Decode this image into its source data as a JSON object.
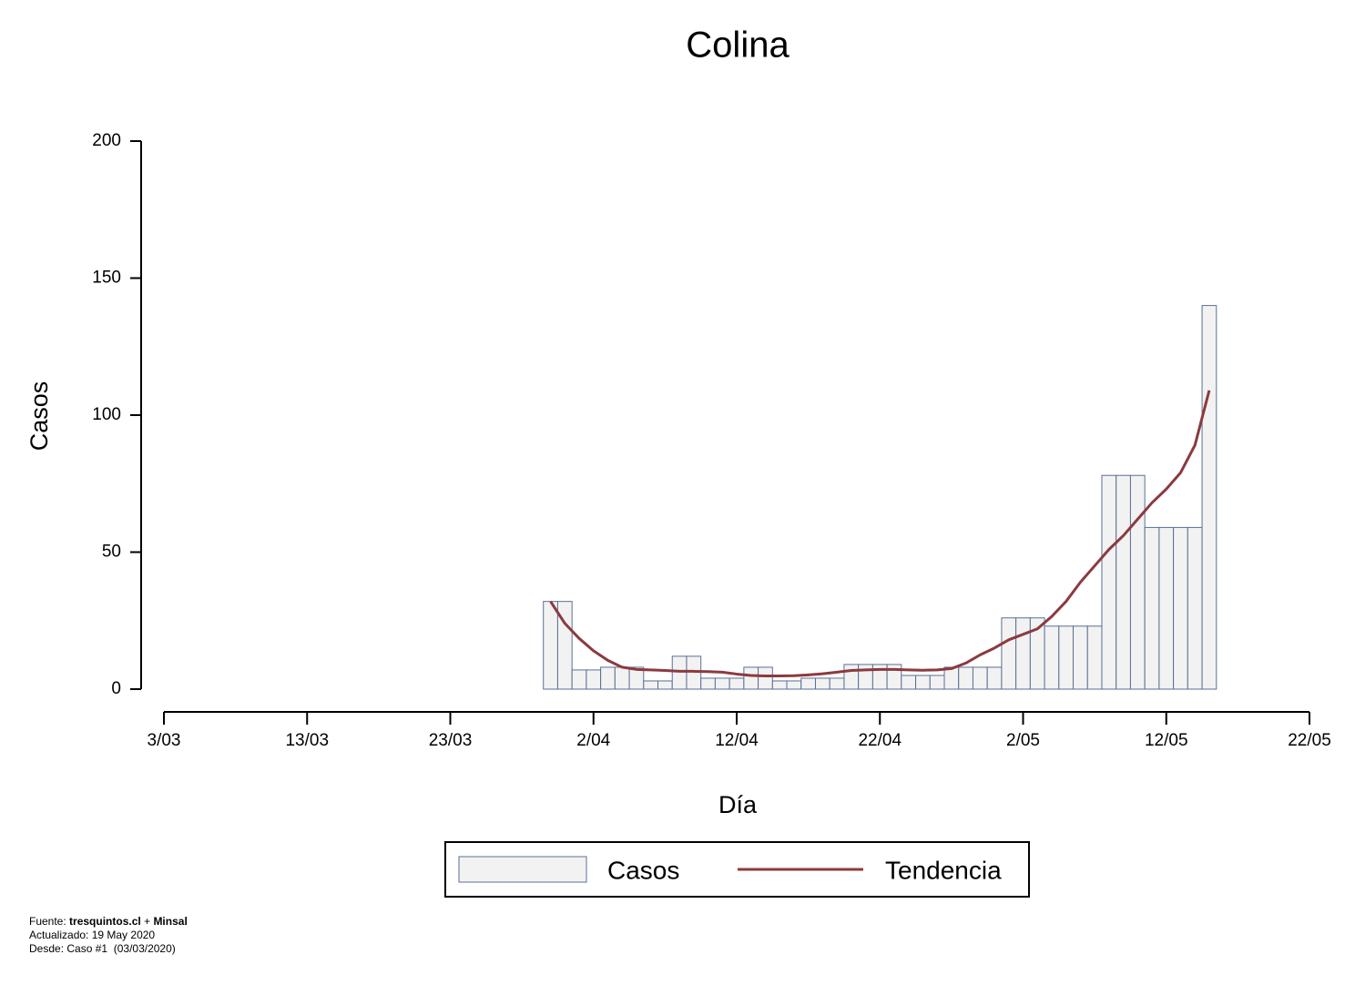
{
  "chart_data": {
    "type": "bar",
    "title": "Colina",
    "xlabel": "Día",
    "ylabel": "Casos",
    "x": [
      "30/03",
      "31/03",
      "1/04",
      "2/04",
      "3/04",
      "4/04",
      "5/04",
      "6/04",
      "7/04",
      "8/04",
      "9/04",
      "10/04",
      "11/04",
      "12/04",
      "13/04",
      "14/04",
      "15/04",
      "16/04",
      "17/04",
      "18/04",
      "19/04",
      "20/04",
      "21/04",
      "22/04",
      "23/04",
      "24/04",
      "25/04",
      "26/04",
      "27/04",
      "28/04",
      "29/04",
      "30/04",
      "1/05",
      "2/05",
      "3/05",
      "4/05",
      "5/05",
      "6/05",
      "7/05",
      "8/05",
      "9/05",
      "10/05",
      "11/05",
      "12/05",
      "13/05",
      "14/05",
      "15/05"
    ],
    "series": [
      {
        "name": "Casos",
        "type": "bar",
        "color": "#f2f2f2",
        "edgecolor": "#5a6f96",
        "values": [
          32,
          32,
          7,
          7,
          8,
          8,
          8,
          3,
          3,
          12,
          12,
          4,
          4,
          4,
          8,
          8,
          3,
          3,
          4,
          4,
          4,
          9,
          9,
          9,
          9,
          5,
          5,
          5,
          8,
          8,
          8,
          8,
          26,
          26,
          26,
          23,
          23,
          23,
          23,
          78,
          78,
          78,
          59,
          59,
          59,
          59,
          140
        ]
      },
      {
        "name": "Tendencia",
        "type": "line",
        "color": "#8b3a3f",
        "values": [
          32,
          24,
          18.5,
          14,
          10.5,
          8,
          7.2,
          7,
          6.8,
          6.5,
          6.5,
          6.4,
          6.2,
          5.5,
          5,
          4.8,
          4.8,
          4.9,
          5.2,
          5.6,
          6.2,
          6.8,
          7,
          7.2,
          7.2,
          7,
          6.9,
          7,
          7.5,
          9.5,
          12.5,
          15,
          18,
          20,
          22,
          26.5,
          32,
          39,
          45,
          51,
          56,
          62,
          68,
          73,
          79,
          89,
          109
        ]
      }
    ],
    "xlim": [
      "3/03",
      "22/05"
    ],
    "xticks": [
      "3/03",
      "13/03",
      "23/03",
      "2/04",
      "12/04",
      "22/04",
      "2/05",
      "12/05",
      "22/05"
    ],
    "ylim": [
      0,
      200
    ],
    "yticks": [
      0,
      50,
      100,
      150,
      200
    ],
    "grid": false,
    "legend": "bottom"
  },
  "footer": {
    "source_label": "Fuente:",
    "source_site": "tresquintos.cl",
    "source_plus": "+",
    "source_org": "Minsal",
    "updated": "Actualizado: 19 May 2020",
    "since": "Desde: Caso #1  (03/03/2020)"
  }
}
